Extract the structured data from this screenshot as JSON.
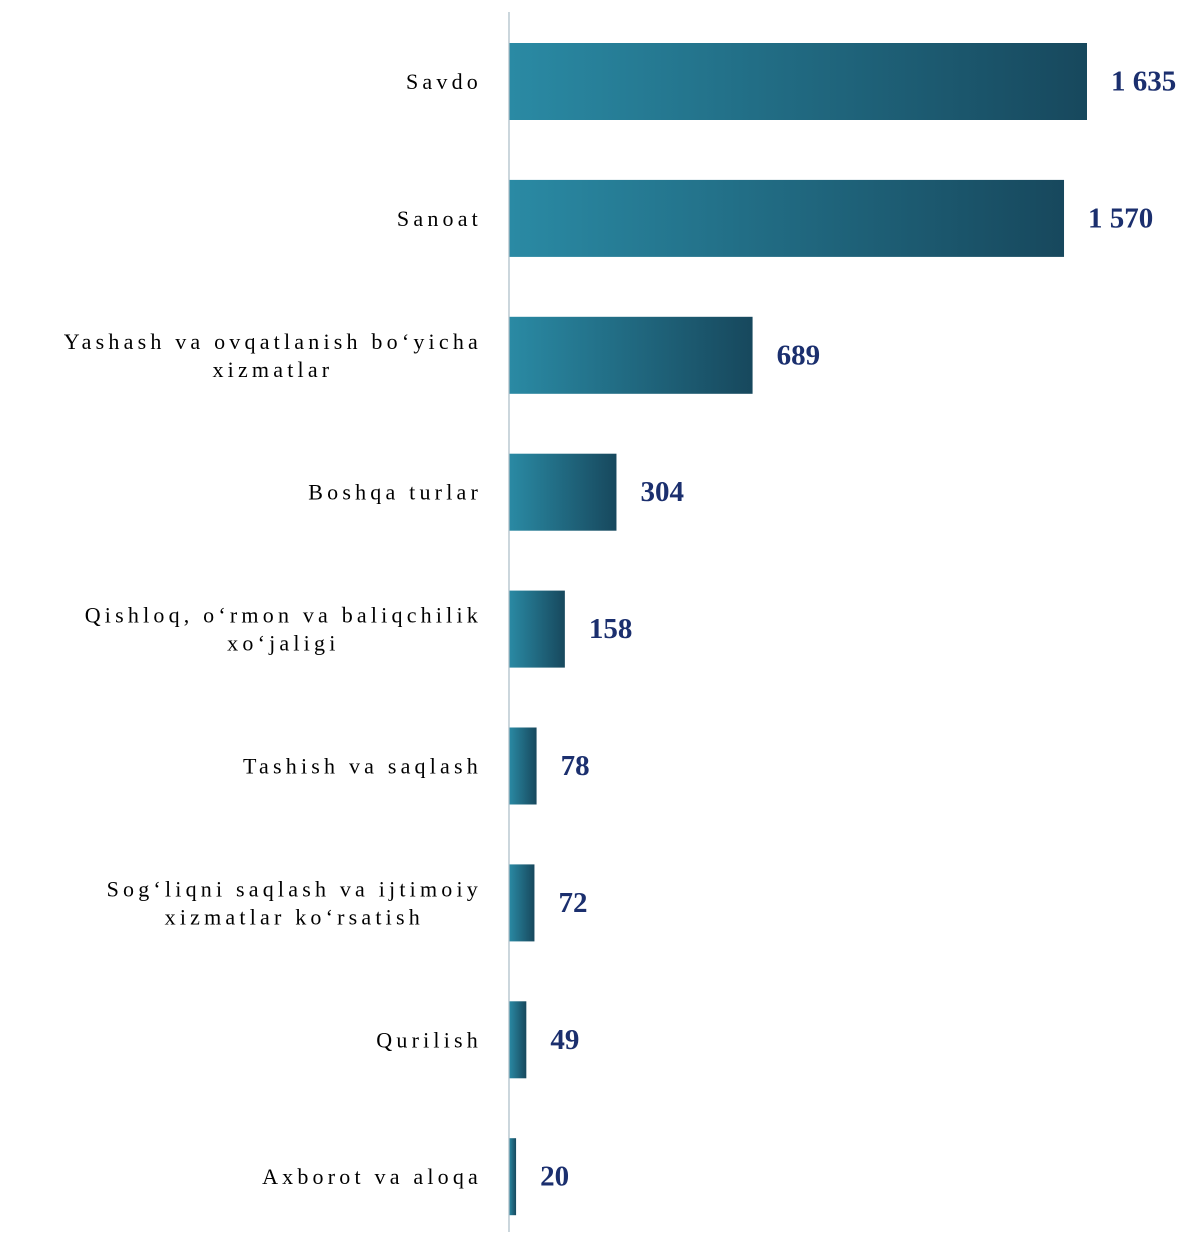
{
  "chart_data": {
    "type": "bar",
    "orientation": "horizontal",
    "categories": [
      [
        "Savdo"
      ],
      [
        "Sanoat"
      ],
      [
        "Yashash va ovqatlanish bo‘yicha",
        "xizmatlar"
      ],
      [
        "Boshqa turlar"
      ],
      [
        "Qishloq, o‘rmon va baliqchilik",
        "xo‘jaligi"
      ],
      [
        "Tashish va saqlash"
      ],
      [
        "Sog‘liqni saqlash va ijtimoiy",
        "xizmatlar ko‘rsatish"
      ],
      [
        "Qurilish"
      ],
      [
        "Axborot va aloqa"
      ]
    ],
    "values": [
      1635,
      1570,
      689,
      304,
      158,
      78,
      72,
      49,
      20
    ],
    "value_labels": [
      "1 635",
      "1 570",
      "689",
      "304",
      "158",
      "78",
      "72",
      "49",
      "20"
    ],
    "xlim": [
      0,
      1635
    ],
    "grid": false,
    "legend": "none",
    "colors": {
      "bar_start": "#2a8aa4",
      "bar_end": "#17485d",
      "axis": "#a9bcc6",
      "value_text": "#1b2f6e"
    }
  }
}
